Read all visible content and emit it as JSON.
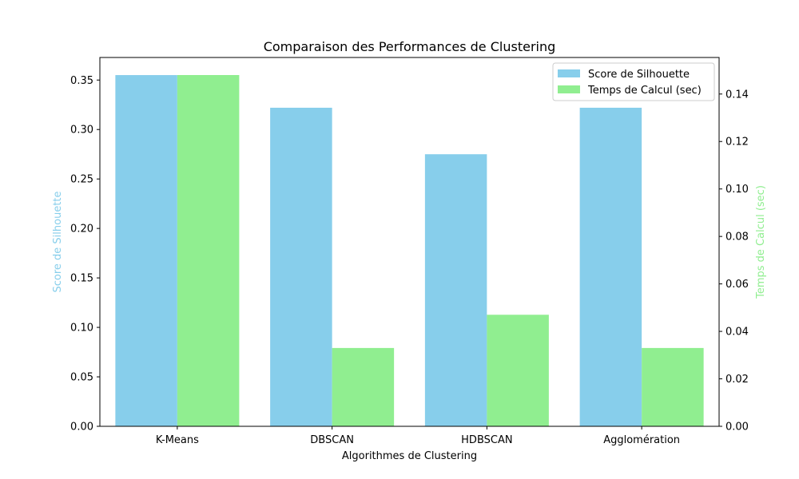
{
  "chart_data": {
    "type": "bar",
    "title": "Comparaison des Performances de Clustering",
    "xlabel": "Algorithmes de Clustering",
    "categories": [
      "K-Means",
      "DBSCAN",
      "HDBSCAN",
      "Agglomération"
    ],
    "series": [
      {
        "name": "Score de Silhouette",
        "axis": "left",
        "color": "#87ceeb",
        "values": [
          0.355,
          0.322,
          0.275,
          0.322
        ]
      },
      {
        "name": "Temps de Calcul (sec)",
        "axis": "right",
        "color": "#90ee90",
        "values": [
          0.148,
          0.033,
          0.047,
          0.033
        ]
      }
    ],
    "y_left": {
      "label": "Score de Silhouette",
      "label_color": "#87ceeb",
      "range": [
        0,
        0.3728
      ],
      "ticks": [
        "0.00",
        "0.05",
        "0.10",
        "0.15",
        "0.20",
        "0.25",
        "0.30",
        "0.35"
      ]
    },
    "y_right": {
      "label": "Temps de Calcul (sec)",
      "label_color": "#90ee90",
      "range": [
        0,
        0.1554
      ],
      "ticks": [
        "0.00",
        "0.02",
        "0.04",
        "0.06",
        "0.08",
        "0.10",
        "0.12",
        "0.14"
      ]
    },
    "grid": false,
    "legend": "top-right"
  }
}
